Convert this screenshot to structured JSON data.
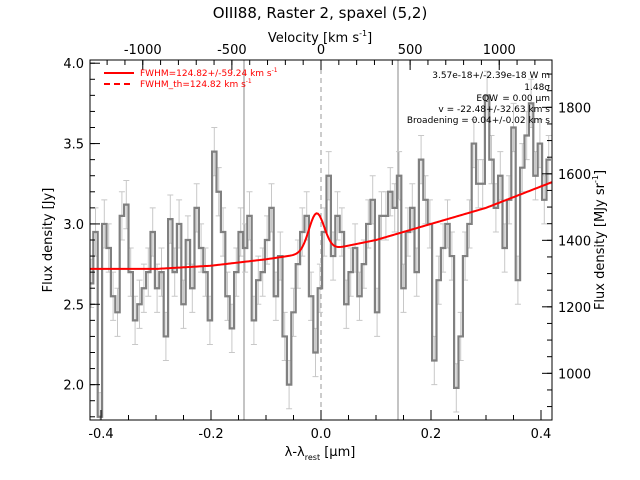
{
  "chart_data": {
    "type": "line",
    "title": "OIII88, Raster 2, spaxel (5,2)",
    "xlabel_main": "λ-λ",
    "xlabel_sub": "rest",
    "xlabel_tail": " [μm]",
    "ylabel_left": "Flux density [Jy]",
    "ylabel_right": "Flux density [MJy sr",
    "ylabel_right_sup": "-1",
    "ylabel_right_tail": "]",
    "xlabel_top": "Velocity [km s",
    "xlabel_top_sup": "-1",
    "xlabel_top_tail": "]",
    "xlim": [
      -0.42,
      0.42
    ],
    "ylim": [
      1.78,
      4.02
    ],
    "ylim_right": [
      859.6,
      1942.3
    ],
    "xlim_top": [
      -1296,
      1296
    ],
    "x_ticks": [
      -0.4,
      -0.2,
      0.0,
      0.2,
      0.4
    ],
    "x_tick_labels": [
      "-0.4",
      "-0.2",
      "0.0",
      "0.2",
      "0.4"
    ],
    "y_ticks": [
      2.0,
      2.5,
      3.0,
      3.5,
      4.0
    ],
    "y_tick_labels": [
      "2.0",
      "2.5",
      "3.0",
      "3.5",
      "4.0"
    ],
    "y_right_ticks": [
      1000,
      1200,
      1400,
      1600,
      1800
    ],
    "y_right_tick_labels": [
      "1000",
      "1200",
      "1400",
      "1600",
      "1800"
    ],
    "x_top_ticks": [
      -1000,
      -500,
      0,
      500,
      1000
    ],
    "x_top_tick_labels": [
      "-1000",
      "-500",
      "0",
      "500",
      "1000"
    ],
    "vlines_solid": [
      -0.14,
      0.14
    ],
    "vline_dashed": 0.0,
    "spectrum": {
      "x": [
        -0.418,
        -0.41,
        -0.402,
        -0.394,
        -0.386,
        -0.378,
        -0.37,
        -0.362,
        -0.354,
        -0.346,
        -0.338,
        -0.33,
        -0.322,
        -0.314,
        -0.306,
        -0.298,
        -0.29,
        -0.282,
        -0.274,
        -0.266,
        -0.258,
        -0.25,
        -0.242,
        -0.234,
        -0.226,
        -0.218,
        -0.21,
        -0.202,
        -0.194,
        -0.186,
        -0.178,
        -0.17,
        -0.162,
        -0.154,
        -0.146,
        -0.138,
        -0.13,
        -0.122,
        -0.114,
        -0.106,
        -0.098,
        -0.09,
        -0.082,
        -0.074,
        -0.066,
        -0.058,
        -0.05,
        -0.042,
        -0.034,
        -0.026,
        -0.018,
        -0.01,
        -0.002,
        0.006,
        0.014,
        0.022,
        0.03,
        0.038,
        0.046,
        0.054,
        0.062,
        0.07,
        0.078,
        0.086,
        0.094,
        0.102,
        0.11,
        0.118,
        0.126,
        0.134,
        0.142,
        0.15,
        0.158,
        0.166,
        0.174,
        0.182,
        0.19,
        0.198,
        0.206,
        0.214,
        0.222,
        0.23,
        0.238,
        0.246,
        0.254,
        0.262,
        0.27,
        0.278,
        0.286,
        0.294,
        0.302,
        0.31,
        0.318,
        0.326,
        0.334,
        0.342,
        0.35,
        0.358,
        0.366,
        0.374,
        0.382,
        0.39,
        0.398,
        0.406,
        0.414
      ],
      "y": [
        2.63,
        2.95,
        1.8,
        3.0,
        2.85,
        2.55,
        2.45,
        3.05,
        3.12,
        2.7,
        2.4,
        2.5,
        2.6,
        2.7,
        2.95,
        2.6,
        2.7,
        2.3,
        3.03,
        2.7,
        3.0,
        2.5,
        2.9,
        2.6,
        3.1,
        2.85,
        2.7,
        2.4,
        3.45,
        3.2,
        2.95,
        2.55,
        2.35,
        2.7,
        2.95,
        2.85,
        3.05,
        2.4,
        2.65,
        2.7,
        2.9,
        3.1,
        2.55,
        2.8,
        2.3,
        2.0,
        2.45,
        2.75,
        2.95,
        3.05,
        2.55,
        2.2,
        2.6,
        2.95,
        3.3,
        2.8,
        3.05,
        2.95,
        2.5,
        2.7,
        2.85,
        2.55,
        2.75,
        3.0,
        3.15,
        2.45,
        3.05,
        3.05,
        3.2,
        3.1,
        3.3,
        2.6,
        2.95,
        3.1,
        2.7,
        3.4,
        3.15,
        3.0,
        2.15,
        2.65,
        2.85,
        3.0,
        2.8,
        1.98,
        2.3,
        2.8,
        3.0,
        3.5,
        3.25,
        3.25,
        3.8,
        3.4,
        3.1,
        3.3,
        2.85,
        3.15,
        3.6,
        2.65,
        3.35,
        3.55,
        3.75,
        3.3,
        3.5,
        3.15,
        3.4
      ],
      "err": 0.15,
      "color": "#808080"
    },
    "fit": {
      "color": "#ff0000",
      "baseline_points": [
        [
          -0.42,
          2.72
        ],
        [
          -0.3,
          2.72
        ],
        [
          -0.2,
          2.74
        ],
        [
          -0.1,
          2.78
        ],
        [
          0.0,
          2.83
        ],
        [
          0.1,
          2.9
        ],
        [
          0.2,
          3.0
        ],
        [
          0.3,
          3.1
        ],
        [
          0.42,
          3.26
        ]
      ],
      "gauss_center": -0.008,
      "gauss_amp": 0.24,
      "gauss_sigma": 0.014
    },
    "legend": [
      {
        "label": "FWHM=124.82+/-59.24 km s",
        "sup": "-1",
        "style": "solid",
        "color": "#ff0000"
      },
      {
        "label": "FWHM_th=124.82 km s",
        "sup": "-1",
        "style": "dashed",
        "color": "#ff0000"
      }
    ],
    "annotations": [
      "3.57e-18+/-2.39e-18 W m",
      "1.48σ",
      "EQW",
      "= 0.00 μm",
      "v = -22.48+/-32.63 km s",
      "Broadening = 0.04+/-0.02 km s"
    ]
  }
}
